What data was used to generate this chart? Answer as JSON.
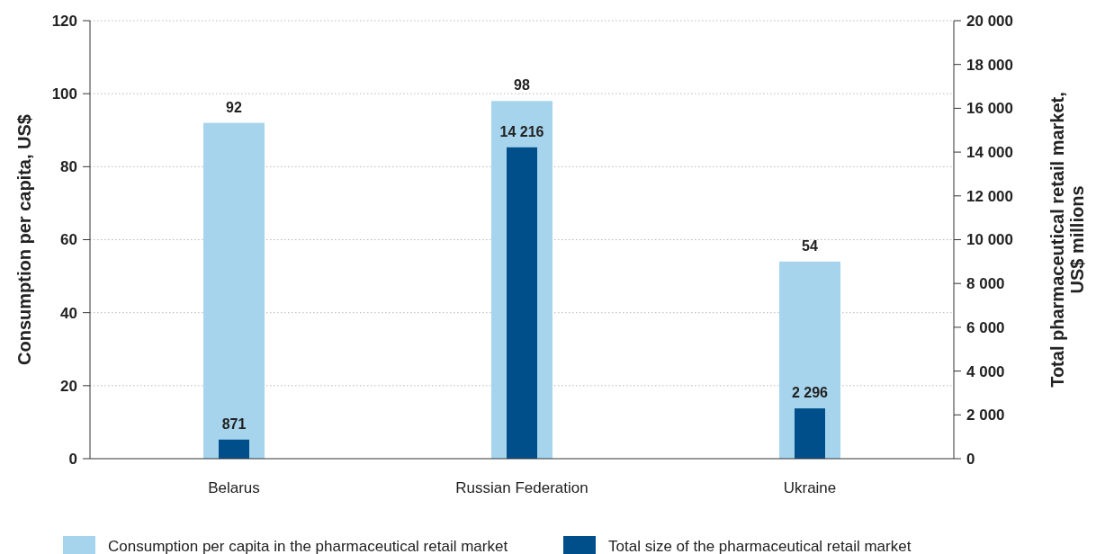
{
  "chart_data": {
    "type": "bar",
    "categories": [
      "Belarus",
      "Russian Federation",
      "Ukraine"
    ],
    "ylabel": "Consumption per capita, US$",
    "y2label": "Total pharmaceutical retail market, US$ millions",
    "ylim": [
      0,
      120
    ],
    "yticks": [
      0,
      20,
      40,
      60,
      80,
      100,
      120
    ],
    "y2lim": [
      0,
      20000
    ],
    "y2ticks": [
      0,
      {
        "value": 2000,
        "label": "2 000"
      },
      {
        "value": 4000,
        "label": "4 000"
      },
      {
        "value": 6000,
        "label": "6 000"
      },
      {
        "value": 8000,
        "label": "8 000"
      },
      {
        "value": 10000,
        "label": "10 000"
      },
      {
        "value": 12000,
        "label": "12 000"
      },
      {
        "value": 14000,
        "label": "14 000"
      },
      {
        "value": 16000,
        "label": "16 000"
      },
      {
        "value": 18000,
        "label": "18 000"
      },
      {
        "value": 20000,
        "label": "20 000"
      }
    ],
    "grid": "y",
    "legend": "bottom",
    "series": [
      {
        "name": "Consumption per capita in the pharmaceutical retail market",
        "color": "#a6d4ec",
        "values": [
          92,
          98,
          54
        ],
        "value_labels": [
          "92",
          "98",
          "54"
        ]
      },
      {
        "name": "Total size of the pharmaceutical retail market",
        "color": "#004f8a",
        "values": [
          871,
          14216,
          2296
        ],
        "value_labels": [
          "871",
          "14 216",
          "2 296"
        ],
        "axis": "y2"
      }
    ]
  }
}
